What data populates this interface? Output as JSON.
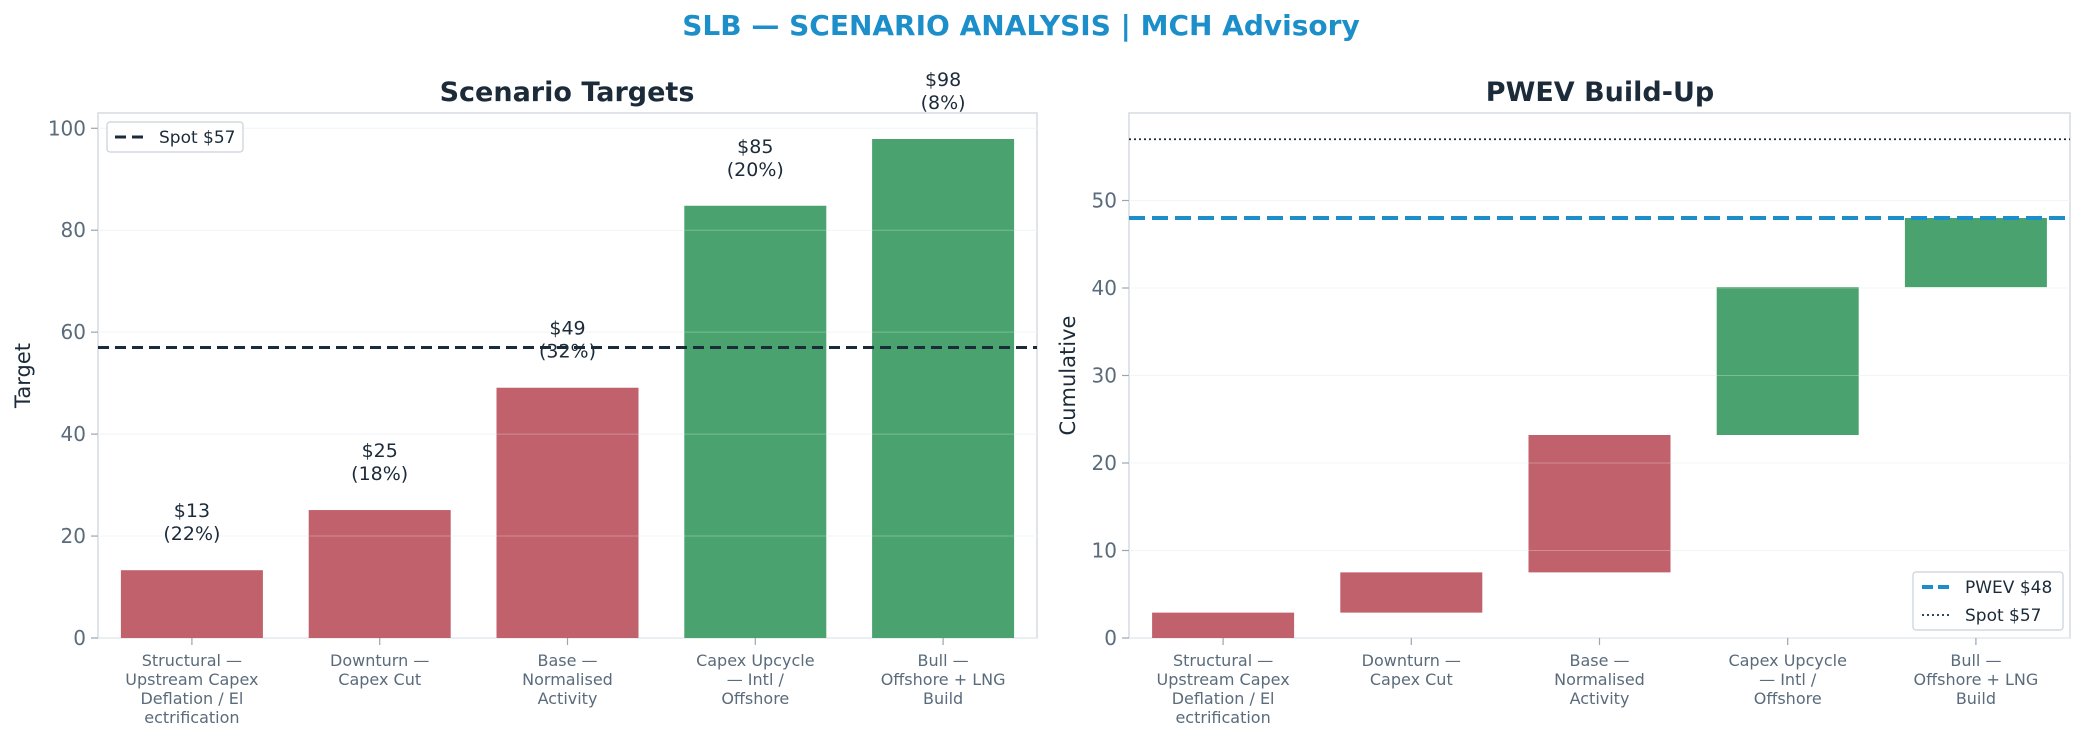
{
  "title": "SLB — SCENARIO ANALYSIS | MCH Advisory",
  "colors": {
    "title": "#1c8fca",
    "bear": "#c0616c",
    "bull": "#4aa26e",
    "spot_line": "#1c2b3a",
    "pwev_line": "#1c8fca"
  },
  "chart_data": [
    {
      "type": "bar",
      "title": "Scenario Targets",
      "xlabel": "",
      "ylabel": "Target",
      "ylim": [
        0,
        103
      ],
      "yticks": [
        "0",
        "20",
        "40",
        "60",
        "80",
        "100"
      ],
      "categories": [
        [
          "Structural —",
          "Upstream Capex",
          "Deflation / El",
          "ectrification"
        ],
        [
          "Downturn —",
          "Capex Cut"
        ],
        [
          "Base —",
          "Normalised",
          "Activity"
        ],
        [
          "Capex Upcycle",
          "— Intl /",
          "Offshore"
        ],
        [
          "Bull —",
          "Offshore + LNG",
          "Build"
        ]
      ],
      "values": [
        13.3,
        25.1,
        49.1,
        84.8,
        97.9
      ],
      "value_labels": [
        "$13",
        "$25",
        "$49",
        "$85",
        "$98"
      ],
      "probability_labels": [
        "(22%)",
        "(18%)",
        "(32%)",
        "(20%)",
        "(8%)"
      ],
      "bar_colors": [
        "#c0616c",
        "#c0616c",
        "#c0616c",
        "#4aa26e",
        "#4aa26e"
      ],
      "reference_lines": [
        {
          "name": "Spot $57",
          "value": 57,
          "style": "dashed",
          "color": "#1c2b3a"
        }
      ],
      "grid": true,
      "legend": "top-left"
    },
    {
      "type": "bar",
      "subtype": "waterfall",
      "title": "PWEV Build-Up",
      "xlabel": "",
      "ylabel": "Cumulative",
      "ylim": [
        0,
        60
      ],
      "yticks": [
        "0",
        "10",
        "20",
        "30",
        "40",
        "50"
      ],
      "categories": [
        [
          "Structural —",
          "Upstream Capex",
          "Deflation / El",
          "ectrification"
        ],
        [
          "Downturn —",
          "Capex Cut"
        ],
        [
          "Base —",
          "Normalised",
          "Activity"
        ],
        [
          "Capex Upcycle",
          "— Intl /",
          "Offshore"
        ],
        [
          "Bull —",
          "Offshore + LNG",
          "Build"
        ]
      ],
      "start": [
        0,
        2.9,
        7.5,
        23.2,
        40.1
      ],
      "end": [
        2.9,
        7.5,
        23.2,
        40.1,
        48.0
      ],
      "bar_colors": [
        "#c0616c",
        "#c0616c",
        "#c0616c",
        "#4aa26e",
        "#4aa26e"
      ],
      "reference_lines": [
        {
          "name": "PWEV $48",
          "value": 48,
          "style": "dashed",
          "color": "#1c8fca"
        },
        {
          "name": "Spot $57",
          "value": 57,
          "style": "dotted",
          "color": "#1c2b3a"
        }
      ],
      "grid": true,
      "legend": "bottom-right"
    }
  ]
}
